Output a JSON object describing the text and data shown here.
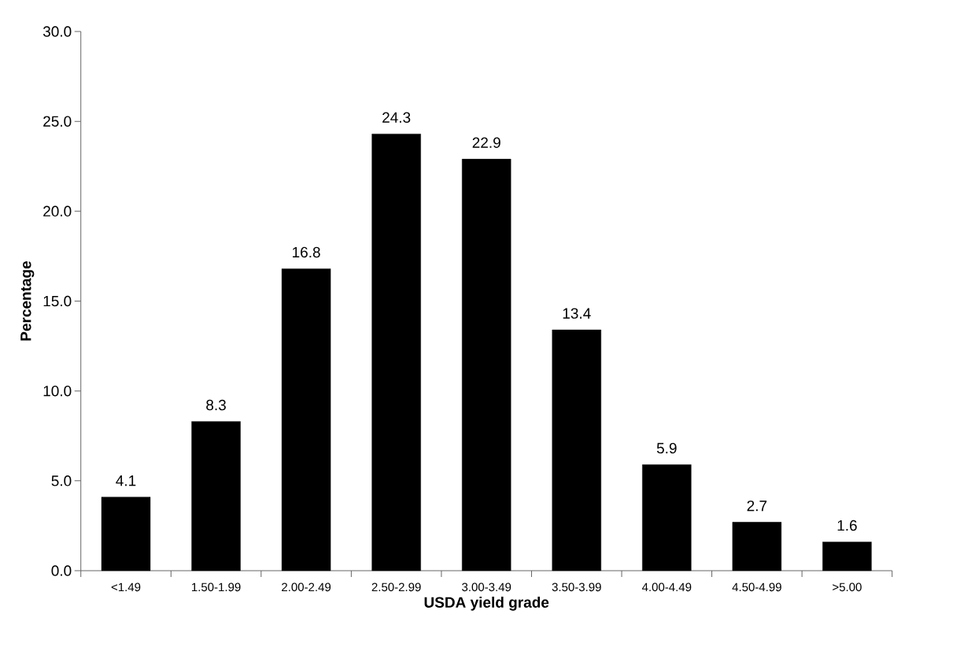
{
  "chart_data": {
    "type": "bar",
    "xlabel": "USDA yield grade",
    "ylabel": "Percentage",
    "categories": [
      "<1.49",
      "1.50-1.99",
      "2.00-2.49",
      "2.50-2.99",
      "3.00-3.49",
      "3.50-3.99",
      "4.00-4.49",
      "4.50-4.99",
      ">5.00"
    ],
    "values": [
      4.1,
      8.3,
      16.8,
      24.3,
      22.9,
      13.4,
      5.9,
      2.7,
      1.6
    ],
    "color": "#000000",
    "ylim": [
      0,
      30
    ],
    "yticks": [
      {
        "value": 0,
        "label": "0.0"
      },
      {
        "value": 5,
        "label": "5.0"
      },
      {
        "value": 10,
        "label": "10.0"
      },
      {
        "value": 15,
        "label": "15.0"
      },
      {
        "value": 20,
        "label": "20.0"
      },
      {
        "value": 25,
        "label": "25.0"
      },
      {
        "value": 30,
        "label": "30.0"
      }
    ],
    "data_labels": true
  }
}
